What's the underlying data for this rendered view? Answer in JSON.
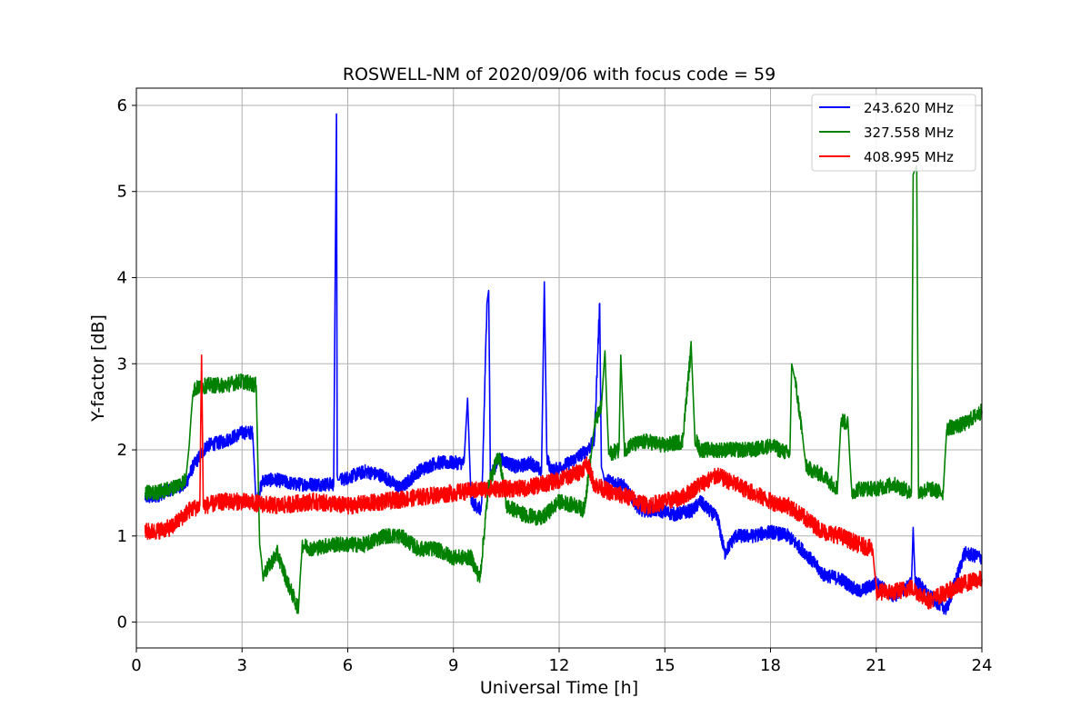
{
  "chart_data": {
    "type": "line",
    "title": "ROSWELL-NM of 2020/09/06 with focus code = 59",
    "xlabel": "Universal Time [h]",
    "ylabel": "Y-factor [dB]",
    "xlim": [
      0,
      24
    ],
    "ylim": [
      -0.3,
      6.2
    ],
    "xticks": [
      0,
      3,
      6,
      9,
      12,
      15,
      18,
      21,
      24
    ],
    "yticks": [
      0,
      1,
      2,
      3,
      4,
      5,
      6
    ],
    "grid": true,
    "legend_position": "top-right",
    "series": [
      {
        "name": "243.620 MHz",
        "color": "#0000ff",
        "noise": 0.08,
        "x": [
          0.25,
          0.5,
          1.0,
          1.4,
          1.6,
          2.0,
          2.5,
          3.0,
          3.3,
          3.4,
          3.6,
          4.0,
          4.5,
          5.0,
          5.6,
          5.68,
          5.7,
          5.72,
          5.8,
          6.5,
          7.0,
          7.5,
          8.0,
          8.5,
          9.0,
          9.3,
          9.4,
          9.5,
          9.8,
          9.95,
          10.0,
          10.05,
          10.3,
          10.8,
          11.2,
          11.5,
          11.58,
          11.65,
          11.8,
          12.3,
          12.8,
          13.0,
          13.15,
          13.2,
          13.3,
          13.8,
          14.3,
          14.8,
          15.3,
          15.8,
          16.0,
          16.5,
          16.7,
          17.0,
          17.5,
          18.0,
          18.5,
          19.0,
          19.5,
          20.0,
          20.5,
          21.0,
          21.5,
          22.0,
          22.05,
          22.1,
          22.5,
          23.0,
          23.5,
          24.0
        ],
        "y": [
          1.45,
          1.45,
          1.55,
          1.6,
          1.8,
          2.05,
          2.1,
          2.2,
          2.2,
          1.4,
          1.65,
          1.65,
          1.6,
          1.6,
          1.6,
          5.9,
          1.7,
          1.65,
          1.65,
          1.75,
          1.7,
          1.55,
          1.75,
          1.85,
          1.85,
          1.85,
          2.6,
          1.4,
          1.3,
          3.7,
          3.85,
          1.7,
          1.9,
          1.8,
          1.85,
          1.75,
          3.95,
          1.9,
          1.75,
          1.85,
          2.0,
          2.1,
          3.7,
          1.8,
          1.65,
          1.6,
          1.3,
          1.3,
          1.25,
          1.3,
          1.4,
          1.2,
          0.8,
          1.0,
          1.0,
          1.05,
          1.0,
          0.8,
          0.55,
          0.5,
          0.35,
          0.45,
          0.3,
          0.45,
          1.1,
          0.5,
          0.3,
          0.15,
          0.8,
          0.75
        ]
      },
      {
        "name": "327.558 MHz",
        "color": "#008000",
        "noise": 0.09,
        "x": [
          0.25,
          0.5,
          1.0,
          1.4,
          1.5,
          1.6,
          2.0,
          2.5,
          3.0,
          3.4,
          3.5,
          3.6,
          4.0,
          4.3,
          4.6,
          4.7,
          5.0,
          5.5,
          6.0,
          6.5,
          7.0,
          7.5,
          8.0,
          8.5,
          9.0,
          9.5,
          9.75,
          10.0,
          10.3,
          10.5,
          11.0,
          11.5,
          12.0,
          12.5,
          12.7,
          12.9,
          13.0,
          13.2,
          13.3,
          13.4,
          13.7,
          13.75,
          13.85,
          14.0,
          14.5,
          15.0,
          15.5,
          15.75,
          15.85,
          16.0,
          16.5,
          17.0,
          17.5,
          18.0,
          18.55,
          18.6,
          18.7,
          18.9,
          19.0,
          19.5,
          19.9,
          20.0,
          20.2,
          20.3,
          20.5,
          21.0,
          21.5,
          22.0,
          22.05,
          22.15,
          22.2,
          22.5,
          22.9,
          23.0,
          23.5,
          24.0
        ],
        "y": [
          1.5,
          1.5,
          1.55,
          1.65,
          2.05,
          2.7,
          2.75,
          2.75,
          2.8,
          2.75,
          0.9,
          0.55,
          0.8,
          0.45,
          0.15,
          0.9,
          0.85,
          0.9,
          0.9,
          0.9,
          1.0,
          1.0,
          0.85,
          0.85,
          0.75,
          0.75,
          0.5,
          1.6,
          1.95,
          1.35,
          1.25,
          1.2,
          1.4,
          1.35,
          1.3,
          1.9,
          2.3,
          2.5,
          3.15,
          1.95,
          2.0,
          3.1,
          2.0,
          2.05,
          2.1,
          2.05,
          2.1,
          3.2,
          2.15,
          2.0,
          2.0,
          2.0,
          2.0,
          2.05,
          1.95,
          3.0,
          2.8,
          2.2,
          1.8,
          1.7,
          1.55,
          2.35,
          2.3,
          1.5,
          1.55,
          1.55,
          1.6,
          1.5,
          5.2,
          5.3,
          1.5,
          1.55,
          1.5,
          2.25,
          2.3,
          2.45
        ]
      },
      {
        "name": "408.995 MHz",
        "color": "#ff0000",
        "noise": 0.1,
        "x": [
          0.25,
          0.5,
          1.0,
          1.5,
          1.8,
          1.85,
          1.9,
          2.5,
          3.0,
          4.0,
          5.0,
          6.0,
          7.0,
          8.0,
          9.0,
          10.0,
          11.0,
          12.0,
          12.6,
          12.8,
          13.0,
          13.5,
          14.0,
          14.5,
          15.0,
          15.5,
          16.0,
          16.5,
          17.0,
          17.5,
          18.0,
          18.5,
          19.0,
          19.5,
          20.0,
          20.5,
          20.9,
          21.0,
          21.5,
          22.0,
          22.5,
          23.0,
          23.5,
          24.0
        ],
        "y": [
          1.05,
          1.05,
          1.1,
          1.3,
          1.35,
          3.1,
          1.35,
          1.4,
          1.4,
          1.35,
          1.4,
          1.35,
          1.4,
          1.45,
          1.5,
          1.55,
          1.55,
          1.65,
          1.75,
          1.85,
          1.6,
          1.5,
          1.45,
          1.35,
          1.4,
          1.45,
          1.6,
          1.7,
          1.6,
          1.5,
          1.4,
          1.35,
          1.2,
          1.05,
          1.0,
          0.9,
          0.85,
          0.35,
          0.35,
          0.4,
          0.25,
          0.35,
          0.45,
          0.5
        ]
      }
    ]
  }
}
